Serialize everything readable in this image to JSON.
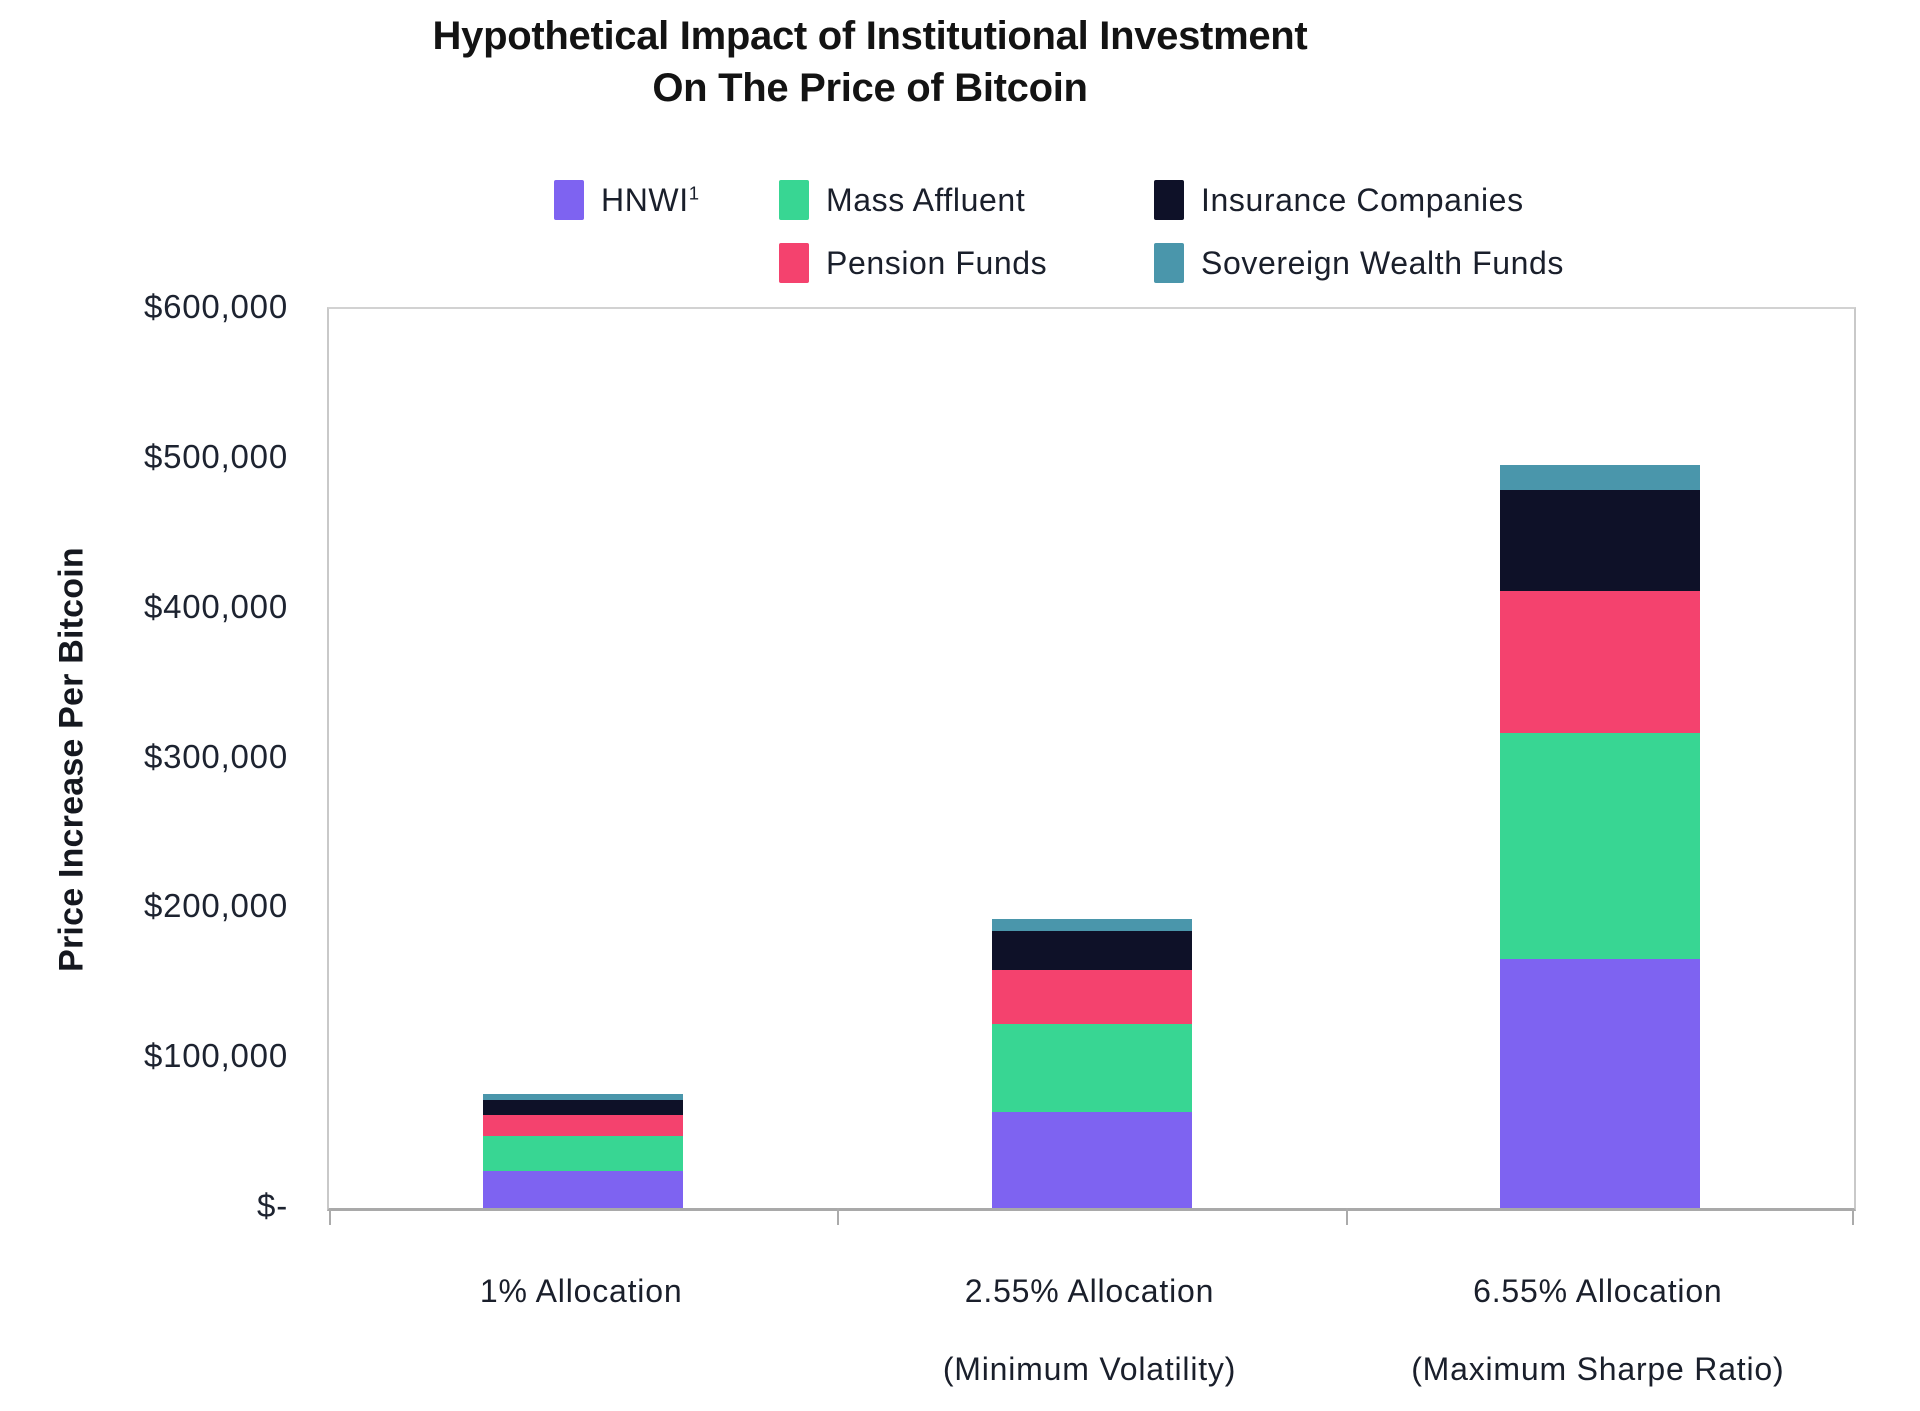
{
  "title": {
    "line1": "Hypothetical Impact of Institutional Investment",
    "line2": "On The Price of Bitcoin"
  },
  "y_axis_title": "Price Increase Per Bitcoin",
  "chart_data": {
    "type": "bar",
    "subtype": "stacked",
    "title": "Hypothetical Impact of Institutional Investment On The Price of Bitcoin",
    "ylabel": "Price Increase Per Bitcoin",
    "xlabel": "",
    "ylim": [
      0,
      600000
    ],
    "grid": false,
    "legend_position": "top",
    "y_ticks": [
      "$-",
      "$100,000",
      "$200,000",
      "$300,000",
      "$400,000",
      "$500,000",
      "$600,000"
    ],
    "categories": [
      {
        "line1": "1% Allocation",
        "line2": ""
      },
      {
        "line1": "2.55% Allocation",
        "line2": "(Minimum Volatility)"
      },
      {
        "line1": "6.55% Allocation",
        "line2": "(Maximum Sharpe Ratio)"
      }
    ],
    "series": [
      {
        "name": "HNWI",
        "sup": "1",
        "color": "#7e63f1",
        "values": [
          25000,
          64000,
          166000
        ]
      },
      {
        "name": "Mass Affluent",
        "sup": "",
        "color": "#38d693",
        "values": [
          23000,
          59000,
          151000
        ]
      },
      {
        "name": "Pension Funds",
        "sup": "",
        "color": "#f4426e",
        "values": [
          14000,
          36000,
          95000
        ]
      },
      {
        "name": "Insurance Companies",
        "sup": "",
        "color": "#0e1128",
        "values": [
          10000,
          26000,
          67000
        ]
      },
      {
        "name": "Sovereign Wealth Funds",
        "sup": "",
        "color": "#4a96ab",
        "values": [
          4000,
          8000,
          17000
        ]
      }
    ],
    "stack_order_bottom_to_top": [
      "HNWI",
      "Mass Affluent",
      "Pension Funds",
      "Insurance Companies",
      "Sovereign Wealth Funds"
    ],
    "totals": [
      76000,
      193000,
      496000
    ],
    "legend_rows": [
      [
        "HNWI",
        "Mass Affluent",
        "Insurance Companies"
      ],
      [
        "Pension Funds",
        "Sovereign Wealth Funds"
      ]
    ]
  },
  "colors": {
    "hnwi": "#7e63f1",
    "mass_affluent": "#38d693",
    "pension_funds": "#f4426e",
    "insurance_companies": "#0e1128",
    "sovereign_wealth_funds": "#4a96ab",
    "axis_border": "#c9c9c9",
    "baseline": "#a9a9a9",
    "text": "#1a1f2b"
  }
}
